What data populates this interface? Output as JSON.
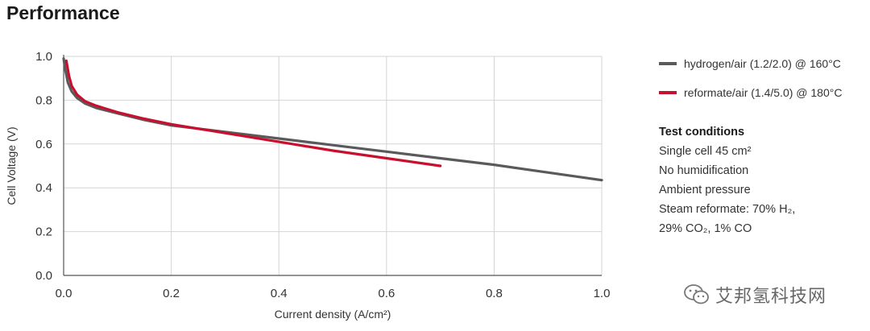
{
  "title": "Performance",
  "chart_data": {
    "type": "line",
    "xlabel": "Current density (A/cm²)",
    "ylabel": "Cell Voltage (V)",
    "xlim": [
      0.0,
      1.0
    ],
    "ylim": [
      0.0,
      1.0
    ],
    "xticks": [
      "0.0",
      "0.2",
      "0.4",
      "0.6",
      "0.8",
      "1.0"
    ],
    "yticks": [
      "0.0",
      "0.2",
      "0.4",
      "0.6",
      "0.8",
      "1.0"
    ],
    "grid": true,
    "legend_position": "right",
    "series": [
      {
        "name": "hydrogen/air (1.2/2.0) @ 160°C",
        "color": "#5a5a5c",
        "x": [
          0.0,
          0.003,
          0.008,
          0.015,
          0.025,
          0.04,
          0.06,
          0.1,
          0.15,
          0.2,
          0.3,
          0.4,
          0.5,
          0.6,
          0.7,
          0.8,
          0.9,
          1.0
        ],
        "y": [
          0.99,
          0.94,
          0.88,
          0.84,
          0.81,
          0.785,
          0.765,
          0.74,
          0.71,
          0.685,
          0.655,
          0.625,
          0.595,
          0.565,
          0.535,
          0.505,
          0.47,
          0.435
        ]
      },
      {
        "name": "reformate/air (1.4/5.0) @ 180°C",
        "color": "#c8102e",
        "x": [
          0.005,
          0.01,
          0.015,
          0.025,
          0.04,
          0.06,
          0.1,
          0.15,
          0.2,
          0.3,
          0.4,
          0.5,
          0.6,
          0.7
        ],
        "y": [
          0.98,
          0.91,
          0.865,
          0.825,
          0.795,
          0.775,
          0.745,
          0.715,
          0.69,
          0.65,
          0.61,
          0.57,
          0.535,
          0.5
        ]
      }
    ]
  },
  "test_conditions": {
    "heading": "Test conditions",
    "lines": [
      "Single cell 45 cm²",
      "No humidification",
      "Ambient pressure",
      "Steam reformate: 70% H₂,",
      "29% CO₂, 1% CO"
    ]
  },
  "watermark": {
    "text": "艾邦氢科技网",
    "icon": "wechat-icon"
  }
}
